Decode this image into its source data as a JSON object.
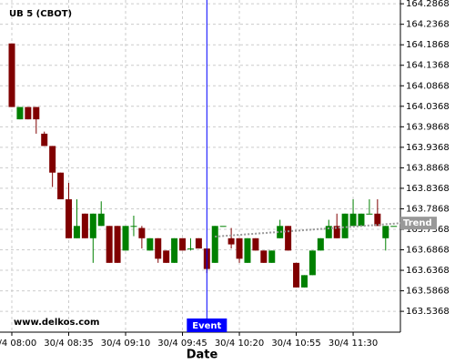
{
  "chart_data": {
    "type": "candlestick",
    "title": "UB 5 (CBOT)",
    "watermark": "www.delkos.com",
    "x_label": "Date",
    "categories": [
      "30/4 08:00",
      null,
      null,
      null,
      null,
      null,
      null,
      "30/4 08:35",
      null,
      null,
      null,
      null,
      null,
      null,
      "30/4 09:10",
      null,
      null,
      null,
      null,
      null,
      null,
      "30/4 09:45",
      null,
      null,
      null,
      null,
      null,
      null,
      "30/4 10:20",
      null,
      null,
      null,
      null,
      null,
      null,
      "30/4 10:55",
      null,
      null,
      null,
      null,
      null,
      null,
      "30/4 11:30",
      null,
      null,
      null,
      null,
      null
    ],
    "open": [
      164.19,
      164.005,
      164.035,
      164.035,
      163.97,
      163.94,
      163.875,
      163.81,
      163.715,
      163.775,
      163.715,
      163.745,
      163.745,
      163.745,
      163.685,
      163.745,
      163.74,
      163.685,
      163.715,
      163.685,
      163.655,
      163.715,
      163.69,
      163.715,
      163.69,
      163.655,
      163.745,
      163.715,
      163.715,
      163.655,
      163.715,
      163.685,
      163.655,
      163.715,
      163.745,
      163.655,
      163.595,
      163.625,
      163.685,
      163.715,
      163.745,
      163.715,
      163.745,
      163.745,
      163.775,
      163.775,
      163.715,
      163.745
    ],
    "high": [
      164.19,
      164.035,
      164.035,
      164.035,
      163.975,
      163.94,
      163.875,
      163.85,
      163.81,
      163.775,
      163.775,
      163.805,
      163.745,
      163.745,
      163.745,
      163.77,
      163.745,
      163.715,
      163.715,
      163.685,
      163.715,
      163.715,
      163.715,
      163.715,
      163.69,
      163.745,
      163.745,
      163.74,
      163.715,
      163.715,
      163.715,
      163.685,
      163.685,
      163.76,
      163.745,
      163.655,
      163.625,
      163.685,
      163.715,
      163.76,
      163.775,
      163.775,
      163.81,
      163.775,
      163.81,
      163.81,
      163.745,
      163.745
    ],
    "low": [
      164.035,
      164.005,
      164.005,
      163.97,
      163.94,
      163.84,
      163.81,
      163.715,
      163.715,
      163.715,
      163.655,
      163.745,
      163.655,
      163.655,
      163.685,
      163.72,
      163.69,
      163.685,
      163.655,
      163.655,
      163.655,
      163.685,
      163.685,
      163.69,
      163.63,
      163.655,
      163.745,
      163.69,
      163.655,
      163.655,
      163.685,
      163.655,
      163.655,
      163.715,
      163.685,
      163.595,
      163.595,
      163.625,
      163.685,
      163.715,
      163.715,
      163.715,
      163.745,
      163.745,
      163.775,
      163.745,
      163.685,
      163.745
    ],
    "close": [
      164.035,
      164.035,
      164.005,
      164.005,
      163.94,
      163.875,
      163.81,
      163.715,
      163.745,
      163.715,
      163.775,
      163.775,
      163.655,
      163.655,
      163.745,
      163.745,
      163.715,
      163.715,
      163.665,
      163.655,
      163.715,
      163.685,
      163.69,
      163.69,
      163.64,
      163.745,
      163.745,
      163.7,
      163.665,
      163.715,
      163.685,
      163.655,
      163.685,
      163.745,
      163.685,
      163.595,
      163.625,
      163.685,
      163.715,
      163.745,
      163.715,
      163.775,
      163.775,
      163.775,
      163.775,
      163.745,
      163.745,
      163.745
    ],
    "up_color": "#008000",
    "down_color": "#800000",
    "ylim": [
      163.486,
      164.296
    ],
    "yticks": [
      163.5368,
      163.5868,
      163.6368,
      163.6868,
      163.7368,
      163.7868,
      163.8368,
      163.8868,
      163.9368,
      163.9868,
      164.0368,
      164.0868,
      164.1368,
      164.1868,
      164.2368,
      164.2868
    ],
    "grid": true,
    "event": {
      "label": "Event",
      "index": 24,
      "color": "#0000ff"
    },
    "trend": {
      "label": "Trend",
      "start_index": 25,
      "start_value": 163.719,
      "end_index": 48,
      "end_value": 163.752,
      "color": "#999999"
    }
  }
}
